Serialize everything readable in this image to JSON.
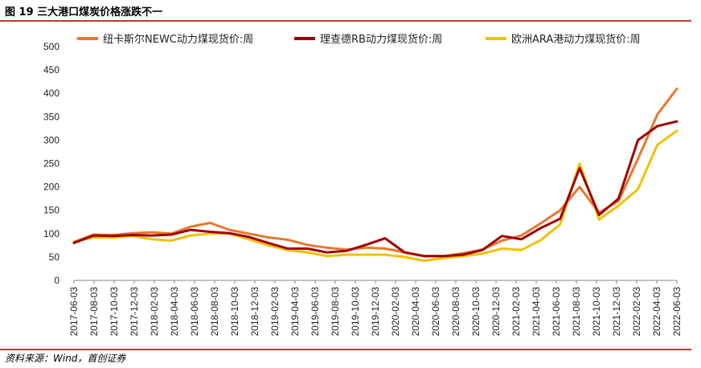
{
  "figure": {
    "title": "图 19 三大港口煤炭价格涨跌不一",
    "source": "资料来源：Wind，首创证券"
  },
  "colors": {
    "rule": "#c0392b",
    "newc": "#E8772E",
    "rb": "#A00000",
    "ara": "#F2C000"
  },
  "chart_data": {
    "type": "line",
    "title": "图 19 三大港口煤炭价格涨跌不一",
    "xlabel": "",
    "ylabel": "",
    "ylim": [
      0,
      500
    ],
    "yticks": [
      0,
      50,
      100,
      150,
      200,
      250,
      300,
      350,
      400,
      450,
      500
    ],
    "grid": false,
    "legend_position": "top",
    "xticks": [
      "2017-06-03",
      "2017-08-03",
      "2017-10-03",
      "2017-12-03",
      "2018-02-03",
      "2018-04-03",
      "2018-06-03",
      "2018-08-03",
      "2018-10-03",
      "2018-12-03",
      "2019-02-03",
      "2019-04-03",
      "2019-06-03",
      "2019-08-03",
      "2019-10-03",
      "2019-12-03",
      "2020-02-03",
      "2020-04-03",
      "2020-06-03",
      "2020-08-03",
      "2020-10-03",
      "2020-12-03",
      "2021-02-03",
      "2021-04-03",
      "2021-06-03",
      "2021-08-03",
      "2021-10-03",
      "2021-12-03",
      "2022-02-03",
      "2022-04-03",
      "2022-06-03"
    ],
    "x": [
      0,
      1,
      2,
      3,
      4,
      5,
      6,
      7,
      8,
      9,
      10,
      11,
      12,
      13,
      14,
      15,
      16,
      17,
      18,
      19,
      20,
      21,
      22,
      23,
      24,
      25,
      26,
      27,
      28,
      29,
      30,
      31
    ],
    "series": [
      {
        "name": "纽卡斯尔NEWC动力煤现货价:周",
        "color_key": "newc",
        "values": [
          82,
          98,
          97,
          101,
          103,
          100,
          115,
          123,
          108,
          100,
          92,
          87,
          76,
          70,
          66,
          70,
          68,
          60,
          52,
          52,
          58,
          66,
          85,
          96,
          122,
          150,
          200,
          145,
          170,
          260,
          355,
          410
        ]
      },
      {
        "name": "理查德RB动力煤现货价:周",
        "color_key": "rb",
        "values": [
          80,
          96,
          95,
          97,
          96,
          98,
          108,
          104,
          101,
          93,
          80,
          68,
          68,
          60,
          63,
          76,
          90,
          60,
          52,
          52,
          55,
          65,
          95,
          88,
          112,
          132,
          240,
          140,
          175,
          300,
          330,
          340
        ]
      },
      {
        "name": "欧洲ARA港动力煤现货价:周",
        "color_key": "ara",
        "values": [
          83,
          92,
          92,
          95,
          88,
          85,
          96,
          100,
          100,
          88,
          75,
          65,
          60,
          52,
          55,
          55,
          55,
          50,
          42,
          48,
          52,
          57,
          68,
          65,
          86,
          120,
          250,
          130,
          160,
          195,
          290,
          320
        ]
      }
    ]
  }
}
